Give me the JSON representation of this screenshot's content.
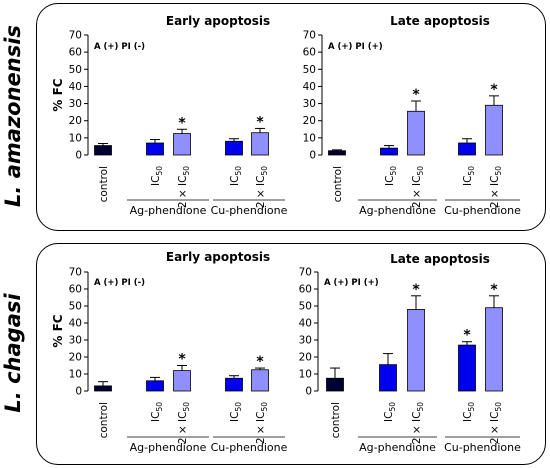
{
  "colors": {
    "control": "#000033",
    "ic50": "#0000ee",
    "ic50x2": "#8f8fff"
  },
  "species": [
    "L. amazonensis",
    "L. chagasi"
  ],
  "chart_data": [
    {
      "type": "bar",
      "title": "Early apoptosis",
      "corner_label": "A (+) PI (-)",
      "ylabel": "% FC",
      "ylim": [
        0,
        70
      ],
      "yticks": [
        "0",
        "10",
        "20",
        "30",
        "40",
        "50",
        "60",
        "70"
      ],
      "categories": [
        "control",
        "IC50",
        "2 × IC50",
        "IC50",
        "2 × IC50"
      ],
      "values": [
        5.5,
        7,
        12.5,
        8,
        13
      ],
      "errors": [
        1.2,
        2,
        2.5,
        1.5,
        2.5
      ],
      "significant": [
        "",
        "",
        "*",
        "",
        "*"
      ],
      "groups": [
        "Ag-phendione",
        "Cu-phendione"
      ]
    },
    {
      "type": "bar",
      "title": "Late apoptosis",
      "corner_label": "A (+) PI (+)",
      "ylabel": "",
      "ylim": [
        0,
        70
      ],
      "yticks": [
        "0",
        "10",
        "20",
        "30",
        "40",
        "50",
        "60",
        "70"
      ],
      "categories": [
        "control",
        "IC50",
        "2 × IC50",
        "IC50",
        "2 × IC50"
      ],
      "values": [
        2.5,
        4,
        25.5,
        7,
        29
      ],
      "errors": [
        0.5,
        1.5,
        6,
        2.5,
        5.5
      ],
      "significant": [
        "",
        "",
        "*",
        "",
        "*"
      ],
      "groups": [
        "Ag-phendione",
        "Cu-phendione"
      ]
    },
    {
      "type": "bar",
      "title": "Early apoptosis",
      "corner_label": "A (+) PI (-)",
      "ylabel": "% FC",
      "ylim": [
        0,
        70
      ],
      "yticks": [
        "0",
        "10",
        "20",
        "30",
        "40",
        "50",
        "60",
        "70"
      ],
      "categories": [
        "control",
        "IC50",
        "2 × IC50",
        "IC50",
        "2 × IC50"
      ],
      "values": [
        3,
        6,
        12,
        7.5,
        12.5
      ],
      "errors": [
        2.5,
        2,
        3,
        1.5,
        1
      ],
      "significant": [
        "",
        "",
        "*",
        "",
        "*"
      ],
      "groups": [
        "Ag-phendione",
        "Cu-phendione"
      ]
    },
    {
      "type": "bar",
      "title": "Late apoptosis",
      "corner_label": "A (+) PI (+)",
      "ylabel": "",
      "ylim": [
        0,
        70
      ],
      "yticks": [
        "0",
        "10",
        "20",
        "30",
        "40",
        "50",
        "60",
        "70"
      ],
      "categories": [
        "control",
        "IC50",
        "2 × IC50",
        "IC50",
        "2 × IC50"
      ],
      "values": [
        7.5,
        15.5,
        48,
        27,
        49
      ],
      "errors": [
        6,
        6.5,
        8,
        2,
        7
      ],
      "significant": [
        "",
        "",
        "*",
        "*",
        "*"
      ],
      "groups": [
        "Ag-phendione",
        "Cu-phendione"
      ]
    }
  ]
}
